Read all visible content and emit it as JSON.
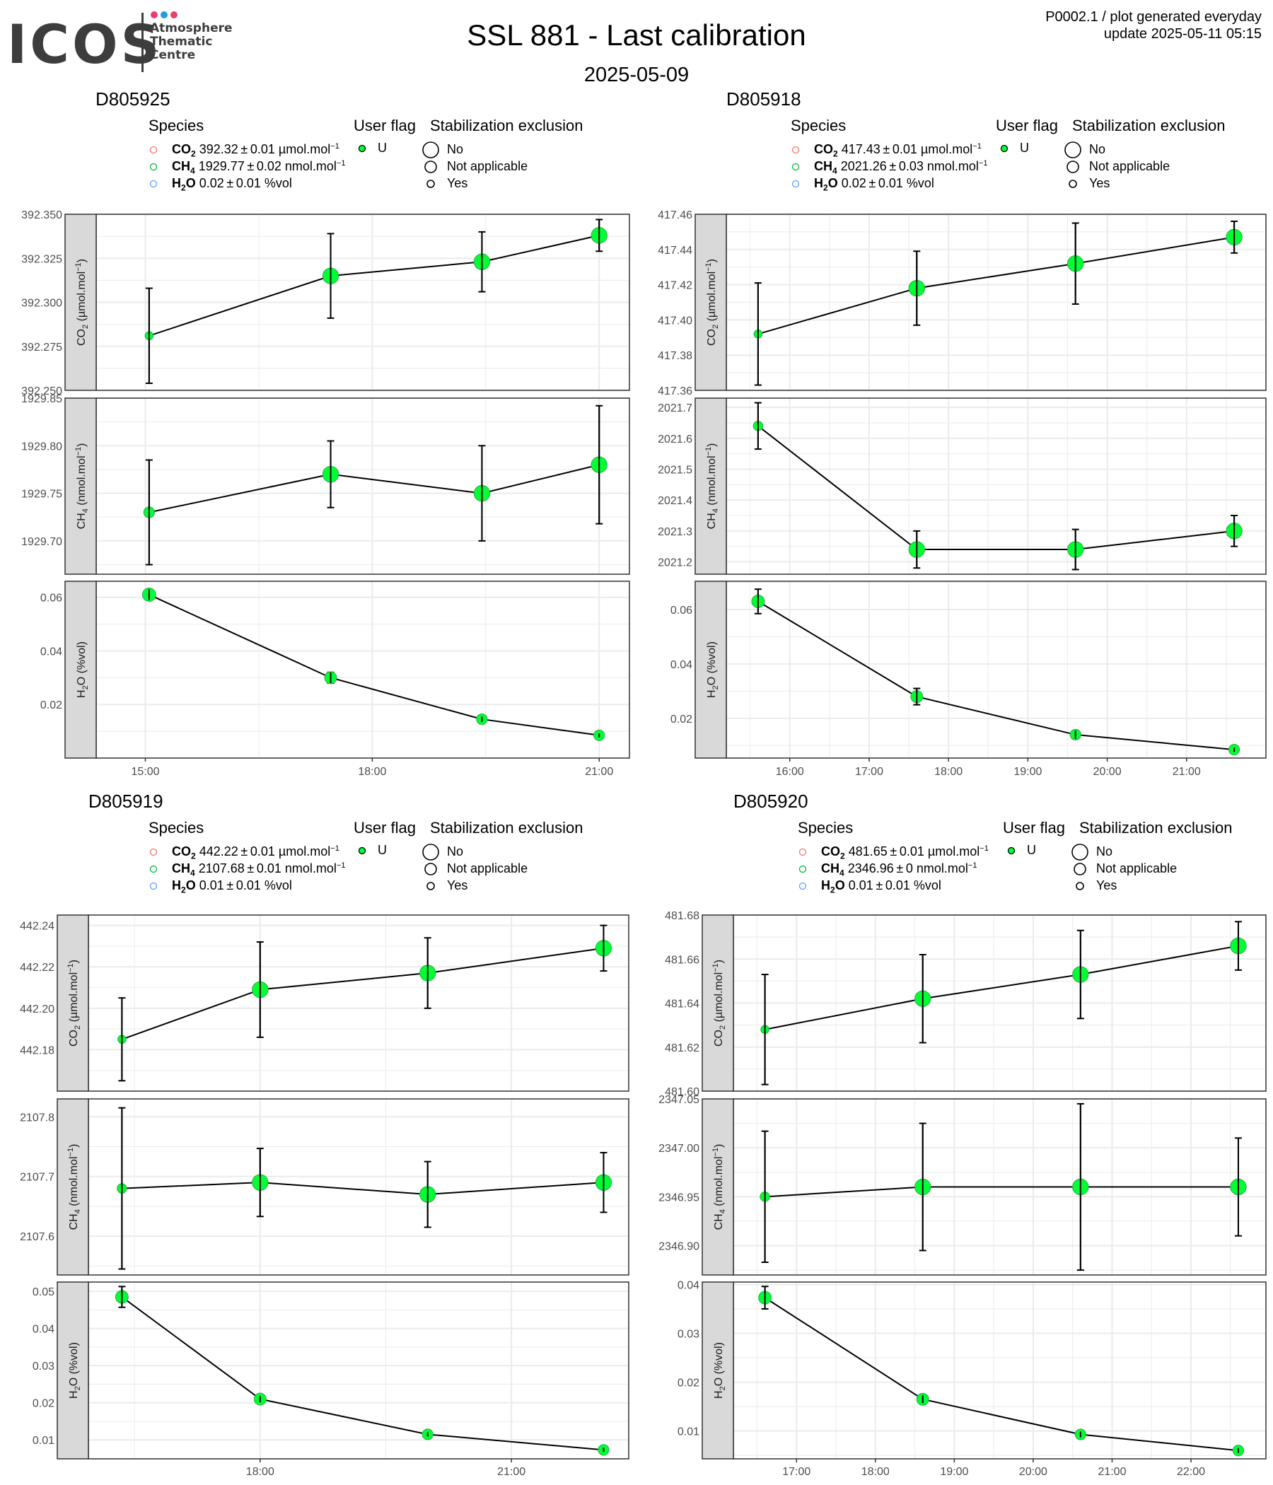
{
  "header": {
    "logo_text": "ICOS",
    "logo_sub": [
      "Atmosphere",
      "Thematic",
      "Centre"
    ],
    "logo_dot_colors": [
      "#e83e6c",
      "#1f9ee0",
      "#e83e6c"
    ],
    "title": "SSL 881 - Last calibration",
    "subtitle": "2025-05-09",
    "info_line1": "P0002.1 / plot generated everyday",
    "info_line2": "update  2025-05-11 05:15"
  },
  "legend_labels": {
    "species_title": "Species",
    "flag_title": "User flag",
    "stab_title": "Stabilization exclusion",
    "flag_value": "U",
    "stab_no": "No",
    "stab_na": "Not applicable",
    "stab_yes": "Yes",
    "species_colors": [
      "#f8766d",
      "#00ba38",
      "#619cff"
    ]
  },
  "colors": {
    "point_fill": "#00ff33",
    "line": "#000000",
    "strip_bg": "#d9d9d9",
    "grid": "#ebebeb"
  },
  "chart_data": [
    {
      "type": "line",
      "title": "D805925",
      "legend": [
        {
          "name": "CO",
          "sub": "2",
          "value": "392.32",
          "unc": "0.01",
          "unit_pre": "µmol.mol",
          "unit_sup": "−1",
          "unit_post": ""
        },
        {
          "name": "CH",
          "sub": "4",
          "value": "1929.77",
          "unc": "0.02",
          "unit_pre": "nmol.mol",
          "unit_sup": "−1",
          "unit_post": ""
        },
        {
          "name": "H",
          "sub": "2",
          "name2": "O",
          "value": "0.02",
          "unc": "0.01",
          "unit_pre": "%vol",
          "unit_sup": "",
          "unit_post": ""
        }
      ],
      "x": [
        15.05,
        17.45,
        19.45,
        21.0
      ],
      "x_ticks": [
        15,
        18,
        21
      ],
      "x_tick_labels": [
        "15:00",
        "18:00",
        "21:00"
      ],
      "xlim": [
        14.35,
        21.4
      ],
      "panels": [
        {
          "ylabel": "CO",
          "ysub": "2",
          "ylabel_rest": " (µmol.mol",
          "ysup": "−1",
          "yclose": ")",
          "ylim": [
            392.25,
            392.35
          ],
          "ytick_labels": [
            "392.250",
            "392.275",
            "392.300",
            "392.325",
            "392.350"
          ],
          "y": [
            392.281,
            392.315,
            392.323,
            392.338
          ],
          "err": [
            0.027,
            0.024,
            0.017,
            0.009
          ],
          "size": [
            0.2,
            0.8,
            0.8,
            0.8
          ]
        },
        {
          "ylabel": "CH",
          "ysub": "4",
          "ylabel_rest": " (nmol.mol",
          "ysup": "−1",
          "yclose": ")",
          "ylim": [
            1929.665,
            1929.85
          ],
          "ytick_labels": [
            "1929.70",
            "1929.75",
            "1929.80",
            "1929.85"
          ],
          "y": [
            1929.73,
            1929.77,
            1929.75,
            1929.78
          ],
          "err": [
            0.055,
            0.035,
            0.05,
            0.062
          ],
          "size": [
            0.4,
            0.8,
            0.8,
            0.8
          ]
        },
        {
          "ylabel": "H",
          "ysub": "2",
          "ylabel_rest": "O (%vol)",
          "ysup": "",
          "yclose": "",
          "ylim": [
            0.0,
            0.066
          ],
          "ytick_labels": [
            "0.02",
            "0.04",
            "0.06"
          ],
          "y": [
            0.061,
            0.03,
            0.0145,
            0.0085
          ],
          "err": [
            0.002,
            0.002,
            0.001,
            0.0008
          ],
          "size": [
            0.6,
            0.5,
            0.4,
            0.4
          ]
        }
      ]
    },
    {
      "type": "line",
      "title": "D805918",
      "legend": [
        {
          "name": "CO",
          "sub": "2",
          "value": "417.43",
          "unc": "0.01",
          "unit_pre": "µmol.mol",
          "unit_sup": "−1",
          "unit_post": ""
        },
        {
          "name": "CH",
          "sub": "4",
          "value": "2021.26",
          "unc": "0.03",
          "unit_pre": "nmol.mol",
          "unit_sup": "−1",
          "unit_post": ""
        },
        {
          "name": "H",
          "sub": "2",
          "name2": "O",
          "value": "0.02",
          "unc": "0.01",
          "unit_pre": "%vol",
          "unit_sup": "",
          "unit_post": ""
        }
      ],
      "x": [
        15.6,
        17.6,
        19.6,
        21.6
      ],
      "x_ticks": [
        16,
        17,
        18,
        19,
        20,
        21
      ],
      "x_tick_labels": [
        "16:00",
        "17:00",
        "18:00",
        "19:00",
        "20:00",
        "21:00"
      ],
      "xlim": [
        15.2,
        22.0
      ],
      "panels": [
        {
          "ylabel": "CO",
          "ysub": "2",
          "ylabel_rest": " (µmol.mol",
          "ysup": "−1",
          "yclose": ")",
          "ylim": [
            417.36,
            417.46
          ],
          "ytick_labels": [
            "417.36",
            "417.38",
            "417.40",
            "417.42",
            "417.44",
            "417.46"
          ],
          "y": [
            417.392,
            417.418,
            417.432,
            417.447
          ],
          "err": [
            0.029,
            0.021,
            0.023,
            0.009
          ],
          "size": [
            0.2,
            0.8,
            0.8,
            0.8
          ]
        },
        {
          "ylabel": "CH",
          "ysub": "4",
          "ylabel_rest": " (nmol.mol",
          "ysup": "−1",
          "yclose": ")",
          "ylim": [
            2021.16,
            2021.73
          ],
          "ytick_labels": [
            "2021.2",
            "2021.3",
            "2021.4",
            "2021.5",
            "2021.6",
            "2021.7"
          ],
          "y": [
            2021.64,
            2021.24,
            2021.24,
            2021.3
          ],
          "err": [
            0.075,
            0.06,
            0.065,
            0.05
          ],
          "size": [
            0.3,
            0.8,
            0.8,
            0.8
          ]
        },
        {
          "ylabel": "H",
          "ysub": "2",
          "ylabel_rest": "O (%vol)",
          "ysup": "",
          "yclose": "",
          "ylim": [
            0.0054,
            0.0704
          ],
          "ytick_labels": [
            "0.02",
            "0.04",
            "0.06"
          ],
          "y": [
            0.063,
            0.028,
            0.014,
            0.0085
          ],
          "err": [
            0.0045,
            0.003,
            0.0015,
            0.0008
          ],
          "size": [
            0.55,
            0.5,
            0.4,
            0.4
          ]
        }
      ]
    },
    {
      "type": "line",
      "title": "D805919",
      "legend": [
        {
          "name": "CO",
          "sub": "2",
          "value": "442.22",
          "unc": "0.01",
          "unit_pre": "µmol.mol",
          "unit_sup": "−1",
          "unit_post": ""
        },
        {
          "name": "CH",
          "sub": "4",
          "value": "2107.68",
          "unc": "0.01",
          "unit_pre": "nmol.mol",
          "unit_sup": "−1",
          "unit_post": ""
        },
        {
          "name": "H",
          "sub": "2",
          "name2": "O",
          "value": "0.01",
          "unc": "0.01",
          "unit_pre": "%vol",
          "unit_sup": "",
          "unit_post": ""
        }
      ],
      "x": [
        16.35,
        18.0,
        20.0,
        22.1
      ],
      "x_ticks": [
        18,
        21
      ],
      "x_tick_labels": [
        "18:00",
        "21:00"
      ],
      "xlim": [
        15.95,
        22.4
      ],
      "panels": [
        {
          "ylabel": "CO",
          "ysub": "2",
          "ylabel_rest": " (µmol.mol",
          "ysup": "−1",
          "yclose": ")",
          "ylim": [
            442.16,
            442.245
          ],
          "ytick_labels": [
            "442.18",
            "442.20",
            "442.22",
            "442.24"
          ],
          "y": [
            442.185,
            442.209,
            442.217,
            442.229
          ],
          "err": [
            0.02,
            0.023,
            0.017,
            0.011
          ],
          "size": [
            0.2,
            0.8,
            0.8,
            0.8
          ]
        },
        {
          "ylabel": "CH",
          "ysub": "4",
          "ylabel_rest": " (nmol.mol",
          "ysup": "−1",
          "yclose": ")",
          "ylim": [
            2107.535,
            2107.83
          ],
          "ytick_labels": [
            "2107.6",
            "2107.7",
            "2107.8"
          ],
          "y": [
            2107.68,
            2107.69,
            2107.67,
            2107.69
          ],
          "err": [
            0.135,
            0.057,
            0.055,
            0.05
          ],
          "size": [
            0.3,
            0.8,
            0.8,
            0.8
          ]
        },
        {
          "ylabel": "H",
          "ysub": "2",
          "ylabel_rest": "O (%vol)",
          "ysup": "",
          "yclose": "",
          "ylim": [
            0.0049,
            0.0525
          ],
          "ytick_labels": [
            "0.01",
            "0.02",
            "0.03",
            "0.04",
            "0.05"
          ],
          "y": [
            0.0485,
            0.021,
            0.0115,
            0.0073
          ],
          "err": [
            0.0028,
            0.0009,
            0.0006,
            0.0006
          ],
          "size": [
            0.55,
            0.5,
            0.4,
            0.4
          ]
        }
      ]
    },
    {
      "type": "line",
      "title": "D805920",
      "legend": [
        {
          "name": "CO",
          "sub": "2",
          "value": "481.65",
          "unc": "0.01",
          "unit_pre": "µmol.mol",
          "unit_sup": "−1",
          "unit_post": ""
        },
        {
          "name": "CH",
          "sub": "4",
          "value": "2346.96",
          "unc": "0",
          "unit_pre": "nmol.mol",
          "unit_sup": "−1",
          "unit_post": ""
        },
        {
          "name": "H",
          "sub": "2",
          "name2": "O",
          "value": "0.01",
          "unc": "0.01",
          "unit_pre": "%vol",
          "unit_sup": "",
          "unit_post": ""
        }
      ],
      "x": [
        16.6,
        18.6,
        20.6,
        22.6
      ],
      "x_ticks": [
        17,
        18,
        19,
        20,
        21,
        22
      ],
      "x_tick_labels": [
        "17:00",
        "18:00",
        "19:00",
        "20:00",
        "21:00",
        "22:00"
      ],
      "xlim": [
        16.2,
        22.95
      ],
      "panels": [
        {
          "ylabel": "CO",
          "ysub": "2",
          "ylabel_rest": " (µmol.mol",
          "ysup": "−1",
          "yclose": ")",
          "ylim": [
            481.6,
            481.68
          ],
          "ytick_labels": [
            "481.60",
            "481.62",
            "481.64",
            "481.66",
            "481.68"
          ],
          "y": [
            481.628,
            481.642,
            481.653,
            481.666
          ],
          "err": [
            0.025,
            0.02,
            0.02,
            0.011
          ],
          "size": [
            0.2,
            0.8,
            0.8,
            0.8
          ]
        },
        {
          "ylabel": "CH",
          "ysub": "4",
          "ylabel_rest": " (nmol.mol",
          "ysup": "−1",
          "yclose": ")",
          "ylim": [
            2346.87,
            2347.05
          ],
          "ytick_labels": [
            "2346.90",
            "2346.95",
            "2347.00",
            "2347.05"
          ],
          "y": [
            2346.95,
            2346.96,
            2346.96,
            2346.96
          ],
          "err": [
            0.067,
            0.065,
            0.085,
            0.05
          ],
          "size": [
            0.3,
            0.8,
            0.8,
            0.8
          ]
        },
        {
          "ylabel": "H",
          "ysub": "2",
          "ylabel_rest": "O (%vol)",
          "ysup": "",
          "yclose": "",
          "ylim": [
            0.0043,
            0.0405
          ],
          "ytick_labels": [
            "0.01",
            "0.02",
            "0.03",
            "0.04"
          ],
          "y": [
            0.0373,
            0.0165,
            0.0093,
            0.006
          ],
          "err": [
            0.0023,
            0.0008,
            0.0006,
            0.0005
          ],
          "size": [
            0.55,
            0.5,
            0.4,
            0.4
          ]
        }
      ]
    }
  ]
}
